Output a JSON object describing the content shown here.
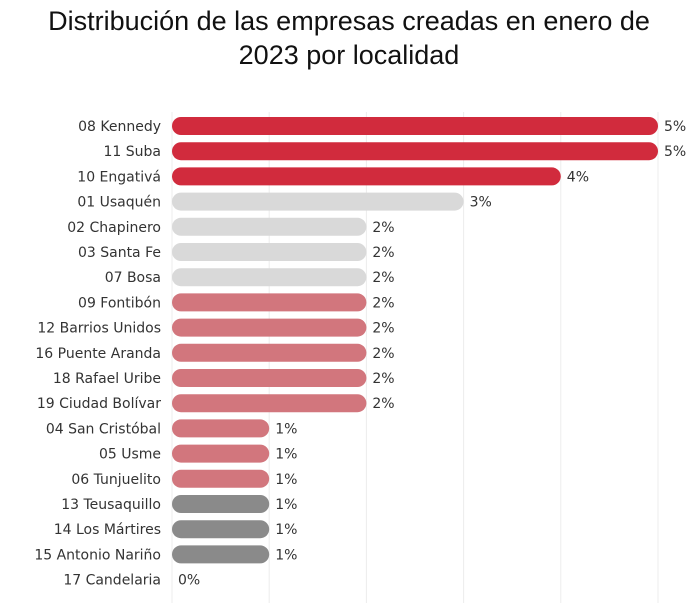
{
  "chart_data": {
    "type": "bar",
    "orientation": "horizontal",
    "title": "Distribución de las empresas creadas en enero de 2023 por localidad",
    "categories": [
      "08 Kennedy",
      "11 Suba",
      "10 Engativá",
      "01 Usaquén",
      "02 Chapinero",
      "03 Santa Fe",
      "07 Bosa",
      "09 Fontibón",
      "12 Barrios Unidos",
      "16 Puente Aranda",
      "18 Rafael Uribe",
      "19 Ciudad Bolívar",
      "04 San Cristóbal",
      "05 Usme",
      "06 Tunjuelito",
      "13 Teusaquillo",
      "14 Los Mártires",
      "15 Antonio Nariño",
      "17 Candelaria"
    ],
    "values": [
      5,
      5,
      4,
      3,
      2,
      2,
      2,
      2,
      2,
      2,
      2,
      2,
      1,
      1,
      1,
      1,
      1,
      1,
      0
    ],
    "value_labels": [
      "5%",
      "5%",
      "4%",
      "3%",
      "2%",
      "2%",
      "2%",
      "2%",
      "2%",
      "2%",
      "2%",
      "2%",
      "1%",
      "1%",
      "1%",
      "1%",
      "1%",
      "1%",
      "0%"
    ],
    "colors": [
      "#d12b3d",
      "#d12b3d",
      "#d12b3d",
      "#d9d9d9",
      "#d9d9d9",
      "#d9d9d9",
      "#d9d9d9",
      "#d2767d",
      "#d2767d",
      "#d2767d",
      "#d2767d",
      "#d2767d",
      "#d2767d",
      "#d2767d",
      "#d2767d",
      "#8a8a8a",
      "#8a8a8a",
      "#8a8a8a",
      "#8a8a8a"
    ],
    "xlim": [
      0,
      5
    ],
    "xticks": [
      0,
      1,
      2,
      3,
      4,
      5
    ],
    "grid": true
  }
}
